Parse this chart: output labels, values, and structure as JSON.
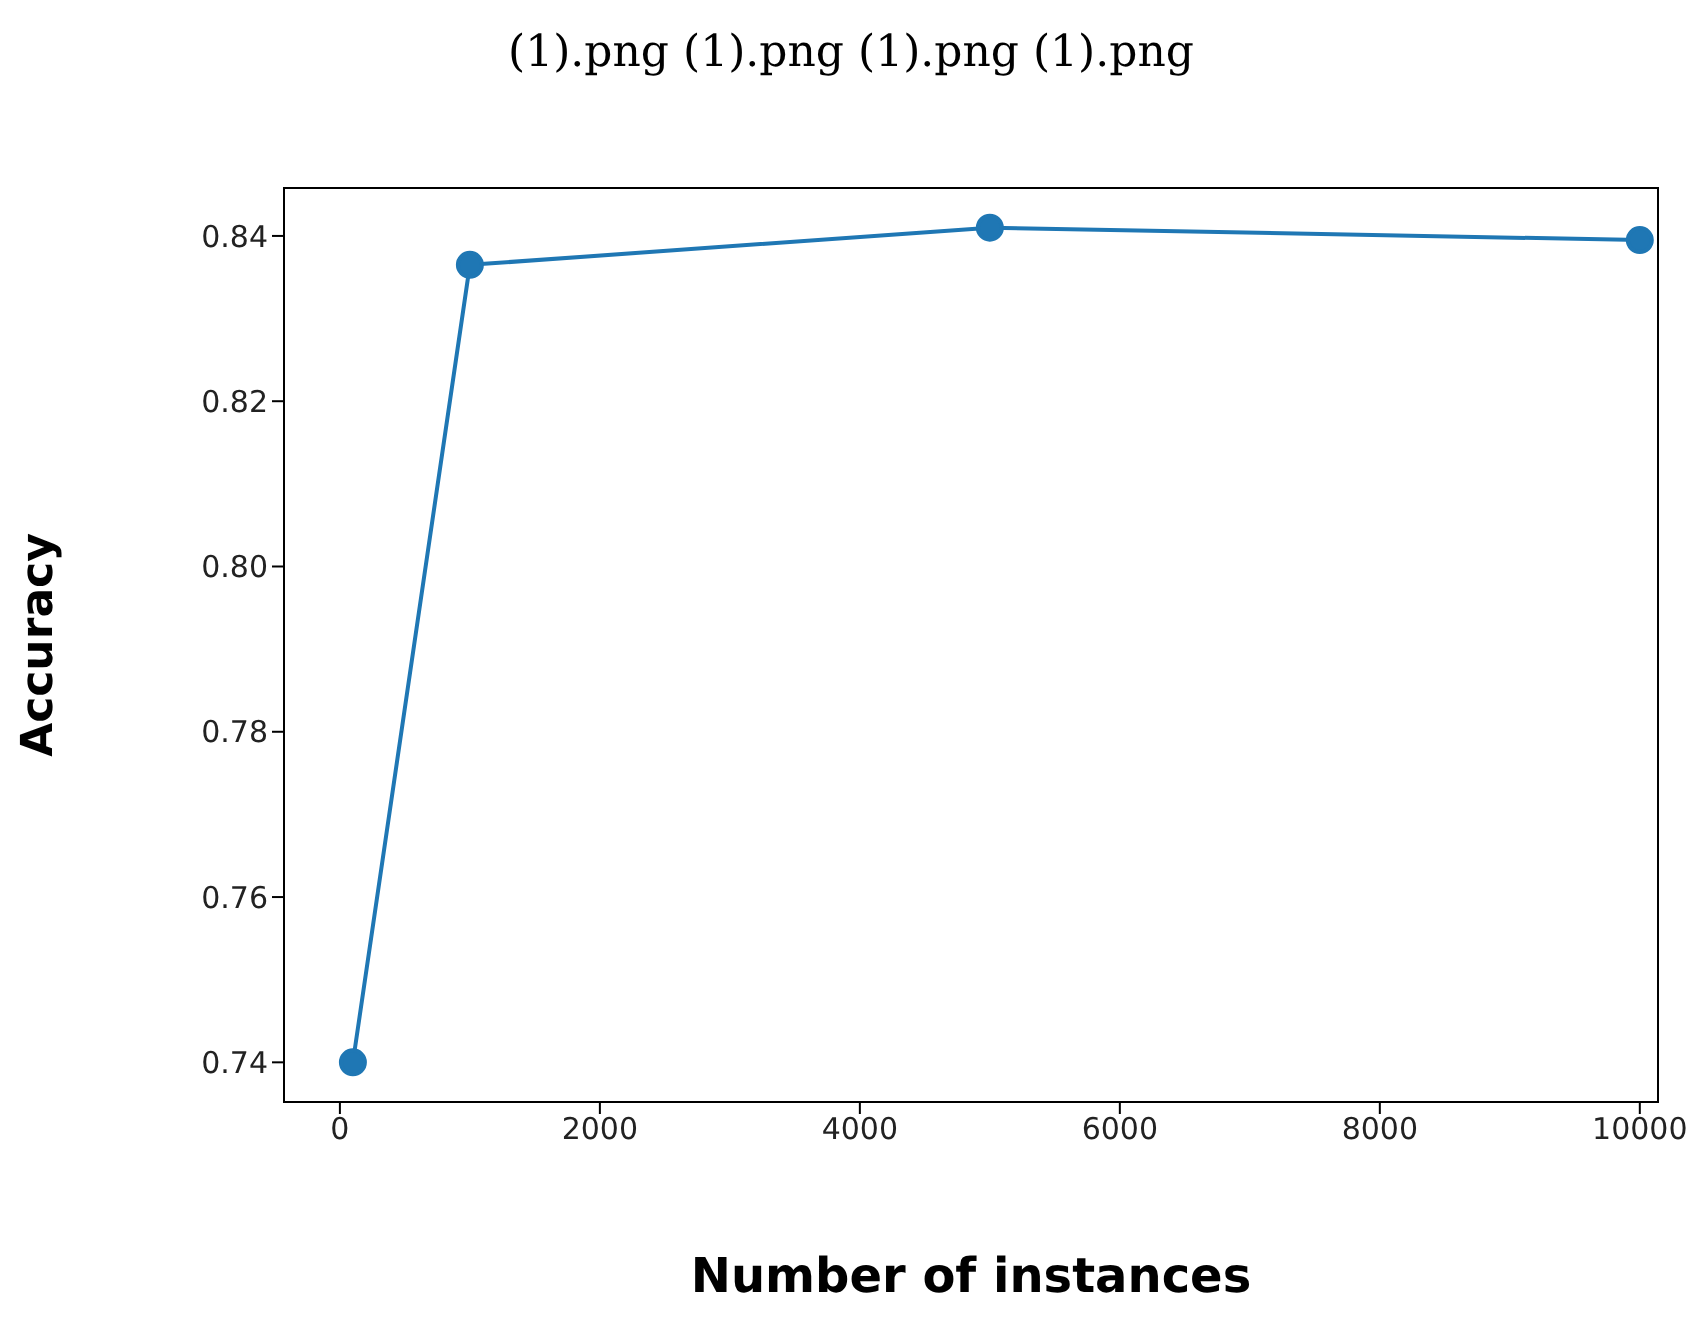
{
  "chart_data": {
    "type": "line",
    "title": "(1).png (1).png (1).png (1).png",
    "xlabel": "Number of instances",
    "ylabel": "Accuracy",
    "x": [
      100,
      1000,
      5000,
      10000
    ],
    "series": [
      {
        "color": "#1f77b4",
        "values": [
          0.74,
          0.8365,
          0.841,
          0.8395
        ]
      }
    ],
    "xlim": [
      -430,
      10140
    ],
    "xticks": [
      0,
      2000,
      4000,
      6000,
      8000,
      10000
    ],
    "ylim": [
      0.7352,
      0.8458
    ],
    "yticks": [
      {
        "value": 0.74,
        "label": "0.74"
      },
      {
        "value": 0.76,
        "label": "0.76"
      },
      {
        "value": 0.78,
        "label": "0.78"
      },
      {
        "value": 0.8,
        "label": "0.80"
      },
      {
        "value": 0.82,
        "label": "0.82"
      },
      {
        "value": 0.84,
        "label": "0.84"
      }
    ],
    "grid": false,
    "legend": false,
    "marker": "circle",
    "line_style": "solid"
  }
}
